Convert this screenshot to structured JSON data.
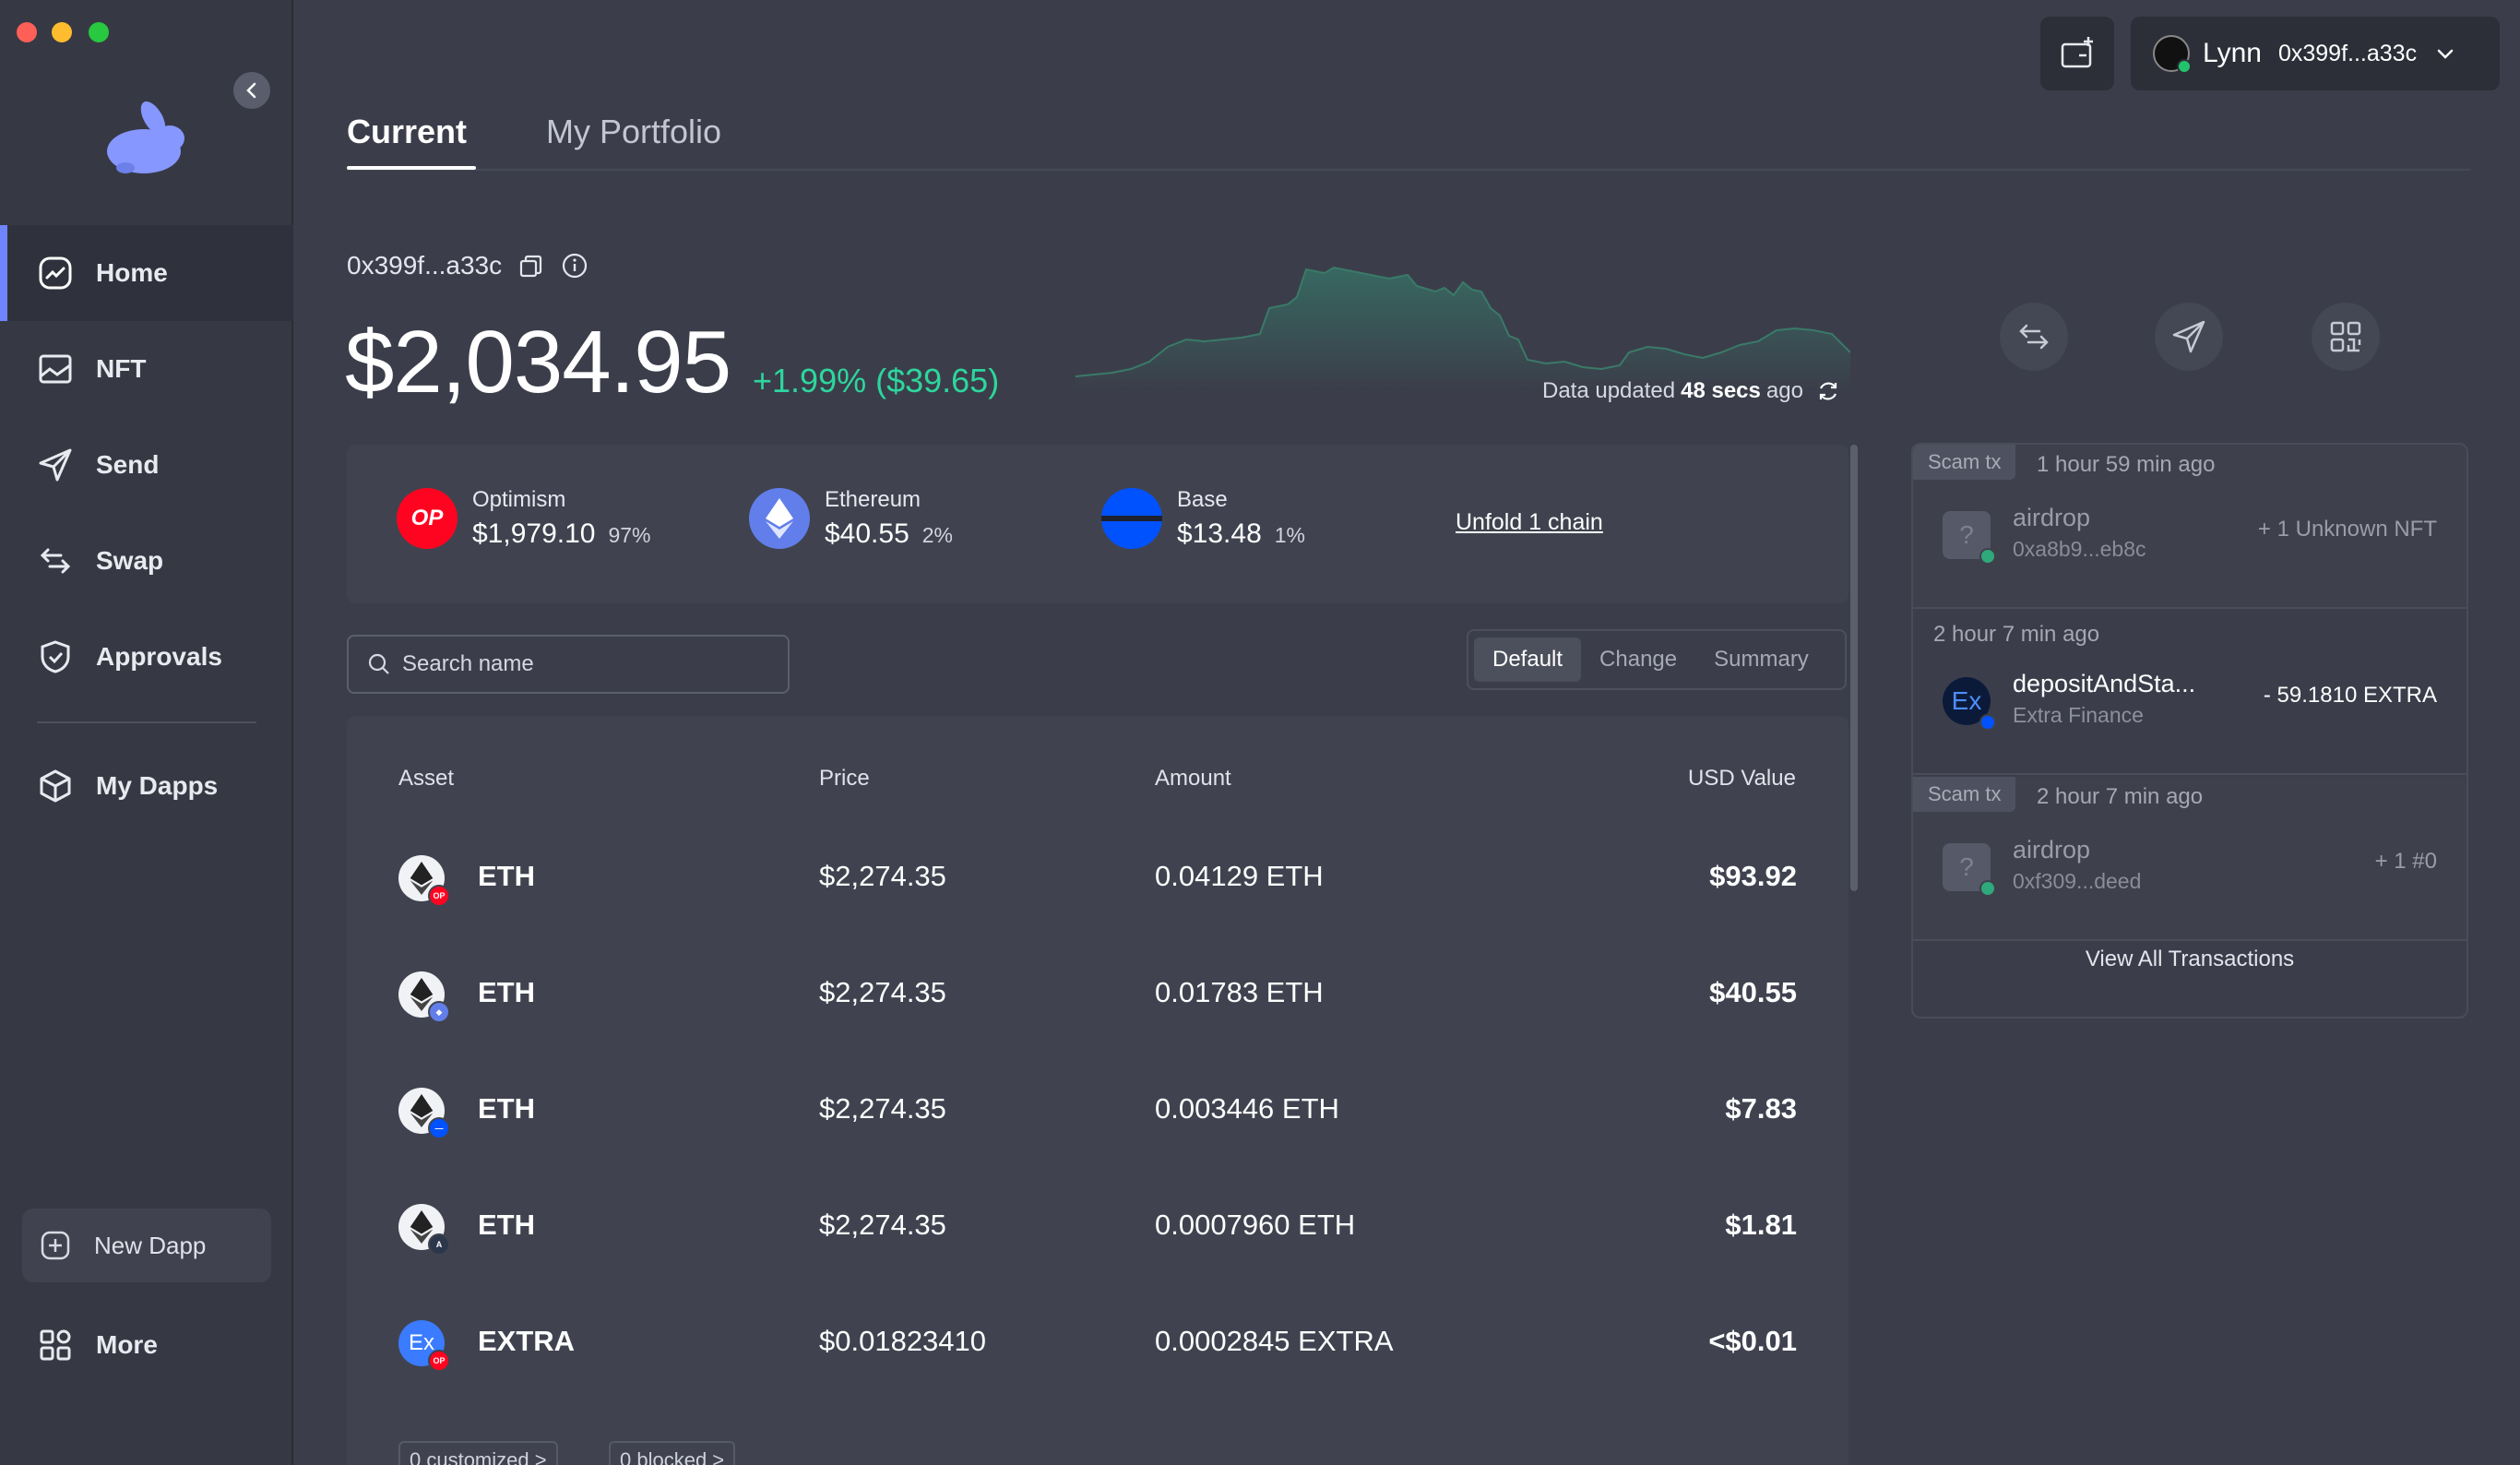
{
  "colors": {
    "accent": "#7084ff",
    "positive": "#2dd69d",
    "optimism": "#ff0420",
    "ethereum": "#627eea",
    "base": "#0052ff"
  },
  "sidebar": {
    "items": [
      {
        "label": "Home",
        "icon": "chart-icon",
        "active": true
      },
      {
        "label": "NFT",
        "icon": "image-icon"
      },
      {
        "label": "Send",
        "icon": "paper-plane-icon"
      },
      {
        "label": "Swap",
        "icon": "swap-arrows-icon"
      },
      {
        "label": "Approvals",
        "icon": "shield-icon"
      },
      {
        "label": "My Dapps",
        "icon": "cube-icon"
      }
    ],
    "new_dapp": "New Dapp",
    "more": "More"
  },
  "tabs": {
    "current": "Current",
    "portfolio": "My Portfolio"
  },
  "account": {
    "name": "Lynn",
    "address": "0x399f...a33c"
  },
  "balance": {
    "address": "0x399f...a33c",
    "total": "$2,034.95",
    "change": "+1.99% ($39.65)",
    "updated_prefix": "Data updated",
    "updated_value": "48 secs",
    "updated_suffix": "ago"
  },
  "chains": [
    {
      "name": "Optimism",
      "value": "$1,979.10",
      "pct": "97%",
      "icon_text": "OP"
    },
    {
      "name": "Ethereum",
      "value": "$40.55",
      "pct": "2%"
    },
    {
      "name": "Base",
      "value": "$13.48",
      "pct": "1%"
    }
  ],
  "unfold": "Unfold 1 chain",
  "search": {
    "placeholder": "Search name"
  },
  "segments": [
    "Default",
    "Change",
    "Summary"
  ],
  "table": {
    "headers": {
      "asset": "Asset",
      "price": "Price",
      "amount": "Amount",
      "usd": "USD Value"
    },
    "rows": [
      {
        "symbol": "ETH",
        "price": "$2,274.35",
        "amount": "0.04129 ETH",
        "usd": "$93.92",
        "chain": "op"
      },
      {
        "symbol": "ETH",
        "price": "$2,274.35",
        "amount": "0.01783 ETH",
        "usd": "$40.55",
        "chain": "eth"
      },
      {
        "symbol": "ETH",
        "price": "$2,274.35",
        "amount": "0.003446 ETH",
        "usd": "$7.83",
        "chain": "base"
      },
      {
        "symbol": "ETH",
        "price": "$2,274.35",
        "amount": "0.0007960 ETH",
        "usd": "$1.81",
        "chain": "arb"
      },
      {
        "symbol": "EXTRA",
        "price": "$0.01823410",
        "amount": "0.0002845 EXTRA",
        "usd": "<$0.01",
        "chain": "op"
      }
    ],
    "footer_pills": [
      "0 customized >",
      "0 blocked >"
    ]
  },
  "transactions": {
    "items": [
      {
        "scam_label": "Scam tx",
        "time": "1 hour 59 min ago",
        "title": "airdrop",
        "sub": "0xa8b9...eb8c",
        "amount": "+ 1 Unknown NFT",
        "scam": true
      },
      {
        "time": "2 hour 7 min ago",
        "title": "depositAndSta...",
        "sub": "Extra Finance",
        "amount": "- 59.1810 EXTRA",
        "scam": false
      },
      {
        "scam_label": "Scam tx",
        "time": "2 hour 7 min ago",
        "title": "airdrop",
        "sub": "0xf309...deed",
        "amount": "+ 1 #0",
        "scam": true
      }
    ],
    "view_all": "View All Transactions"
  }
}
